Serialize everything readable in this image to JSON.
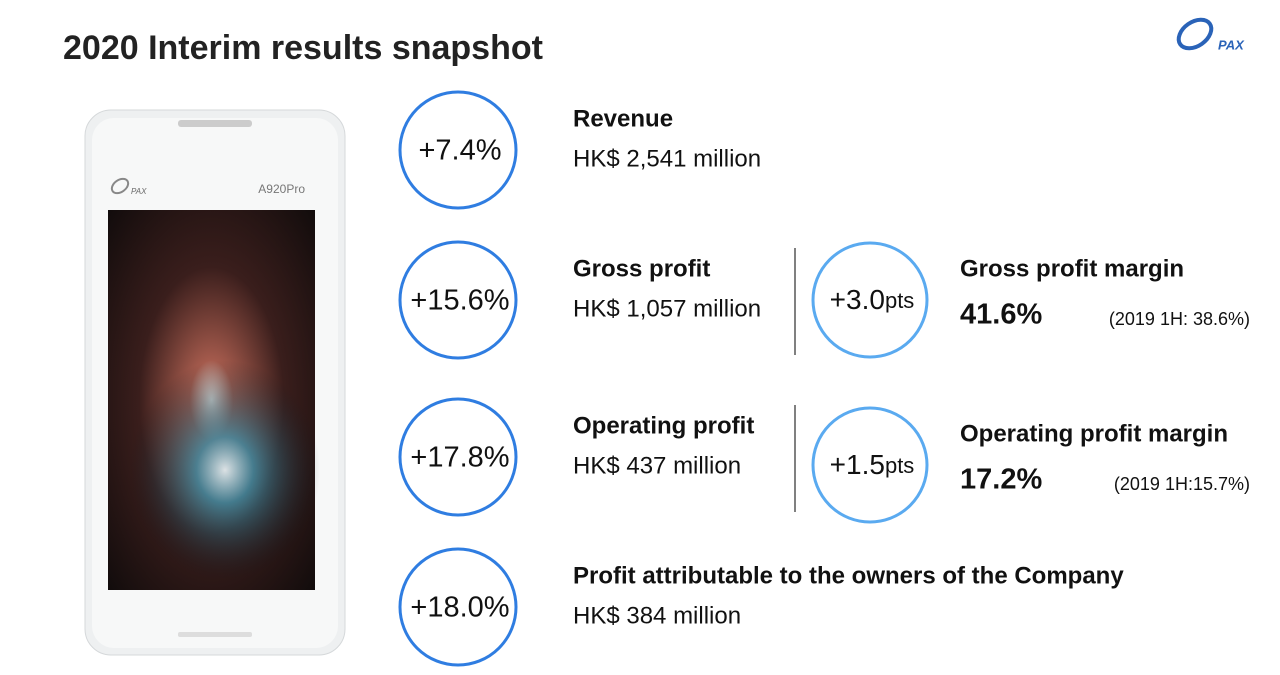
{
  "header": {
    "title": "2020 Interim results snapshot",
    "logo": "PAX"
  },
  "device": {
    "brand": "PAX",
    "model": "A920Pro"
  },
  "metrics": [
    {
      "change": "+7.4%",
      "label": "Revenue",
      "value": "HK$ 2,541 million"
    },
    {
      "change": "+15.6%",
      "label": "Gross profit",
      "value": "HK$ 1,057 million"
    },
    {
      "change": "+17.8%",
      "label": "Operating profit",
      "value": "HK$ 437 million"
    },
    {
      "change": "+18.0%",
      "label": "Profit attributable to the owners of the Company",
      "value": "HK$ 384 million"
    }
  ],
  "margins": [
    {
      "change": "+3.0",
      "unit": "pts",
      "label": "Gross profit margin",
      "value": "41.6%",
      "note": "(2019 1H: 38.6%)"
    },
    {
      "change": "+1.5",
      "unit": "pts",
      "label": "Operating profit margin",
      "value": "17.2%",
      "note": "(2019 1H:15.7%)"
    }
  ]
}
